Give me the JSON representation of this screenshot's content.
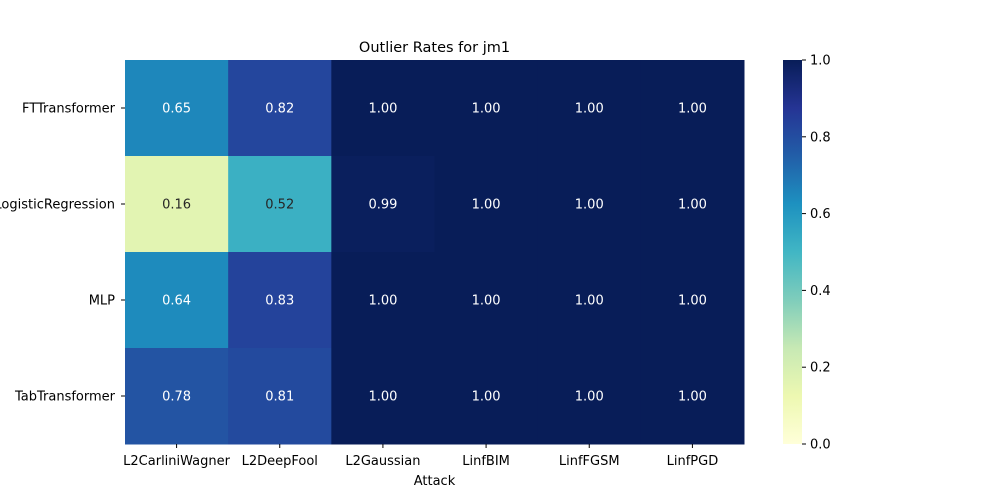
{
  "chart_data": {
    "type": "heatmap",
    "title": "Outlier Rates for jm1",
    "xlabel": "Attack",
    "ylabel": "",
    "x_categories": [
      "L2CarliniWagner",
      "L2DeepFool",
      "L2Gaussian",
      "LinfBIM",
      "LinfFGSM",
      "LinfPGD"
    ],
    "y_categories": [
      "FTTransformer",
      "LogisticRegression",
      "MLP",
      "TabTransformer"
    ],
    "values": [
      [
        0.65,
        0.82,
        1.0,
        1.0,
        1.0,
        1.0
      ],
      [
        0.16,
        0.52,
        0.99,
        1.0,
        1.0,
        1.0
      ],
      [
        0.64,
        0.83,
        1.0,
        1.0,
        1.0,
        1.0
      ],
      [
        0.78,
        0.81,
        1.0,
        1.0,
        1.0,
        1.0
      ]
    ],
    "value_labels": [
      [
        "0.65",
        "0.82",
        "1.00",
        "1.00",
        "1.00",
        "1.00"
      ],
      [
        "0.16",
        "0.52",
        "0.99",
        "1.00",
        "1.00",
        "1.00"
      ],
      [
        "0.64",
        "0.83",
        "1.00",
        "1.00",
        "1.00",
        "1.00"
      ],
      [
        "0.78",
        "0.81",
        "1.00",
        "1.00",
        "1.00",
        "1.00"
      ]
    ],
    "colorbar": {
      "range": [
        0,
        1
      ],
      "ticks": [
        0.0,
        0.2,
        0.4,
        0.6,
        0.8,
        1.0
      ],
      "tick_labels": [
        "0.0",
        "0.2",
        "0.4",
        "0.6",
        "0.8",
        "1.0"
      ],
      "colormap": "YlGnBu"
    }
  }
}
